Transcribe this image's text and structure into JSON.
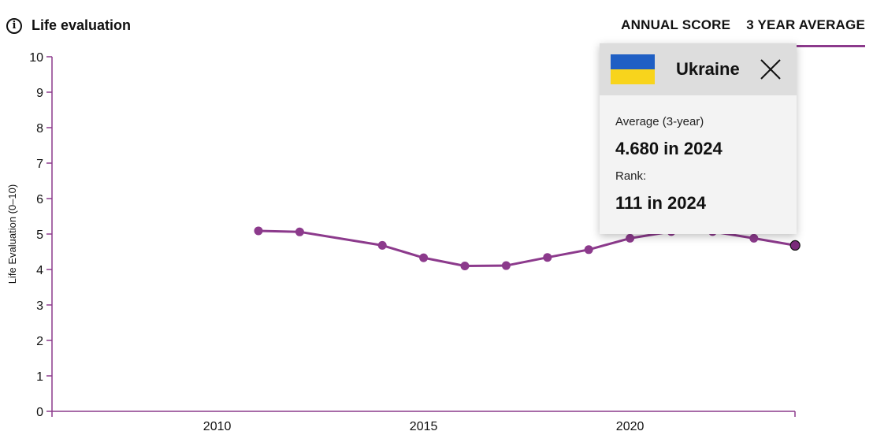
{
  "header": {
    "title": "Life evaluation",
    "info_icon": "info-icon"
  },
  "tabs": [
    {
      "label": "ANNUAL SCORE",
      "active": false
    },
    {
      "label": "3 YEAR AVERAGE",
      "active": true
    }
  ],
  "colors": {
    "series": "#8c3a8c",
    "axis": "#8c3a8c",
    "last_point": "#7a2b7a"
  },
  "tooltip": {
    "country": "Ukraine",
    "avg_label": "Average (3-year)",
    "avg_value": "4.680 in 2024",
    "rank_label": "Rank:",
    "rank_value": "111 in 2024",
    "close_icon": "close-icon"
  },
  "chart_data": {
    "type": "line",
    "title": "Life evaluation",
    "ylabel": "Life Evaluation (0–10)",
    "xlabel": "",
    "ylim": [
      0,
      10
    ],
    "xlim": [
      2006,
      2024
    ],
    "yticks": [
      0,
      1,
      2,
      3,
      4,
      5,
      6,
      7,
      8,
      9,
      10
    ],
    "xticks": [
      2010,
      2015,
      2020
    ],
    "series": [
      {
        "name": "Ukraine",
        "x": [
          2011,
          2012,
          2014,
          2015,
          2016,
          2017,
          2018,
          2019,
          2020,
          2021,
          2022,
          2023,
          2024
        ],
        "values": [
          5.09,
          5.06,
          4.68,
          4.33,
          4.1,
          4.11,
          4.34,
          4.56,
          4.88,
          5.07,
          5.07,
          4.88,
          4.68
        ]
      }
    ]
  }
}
